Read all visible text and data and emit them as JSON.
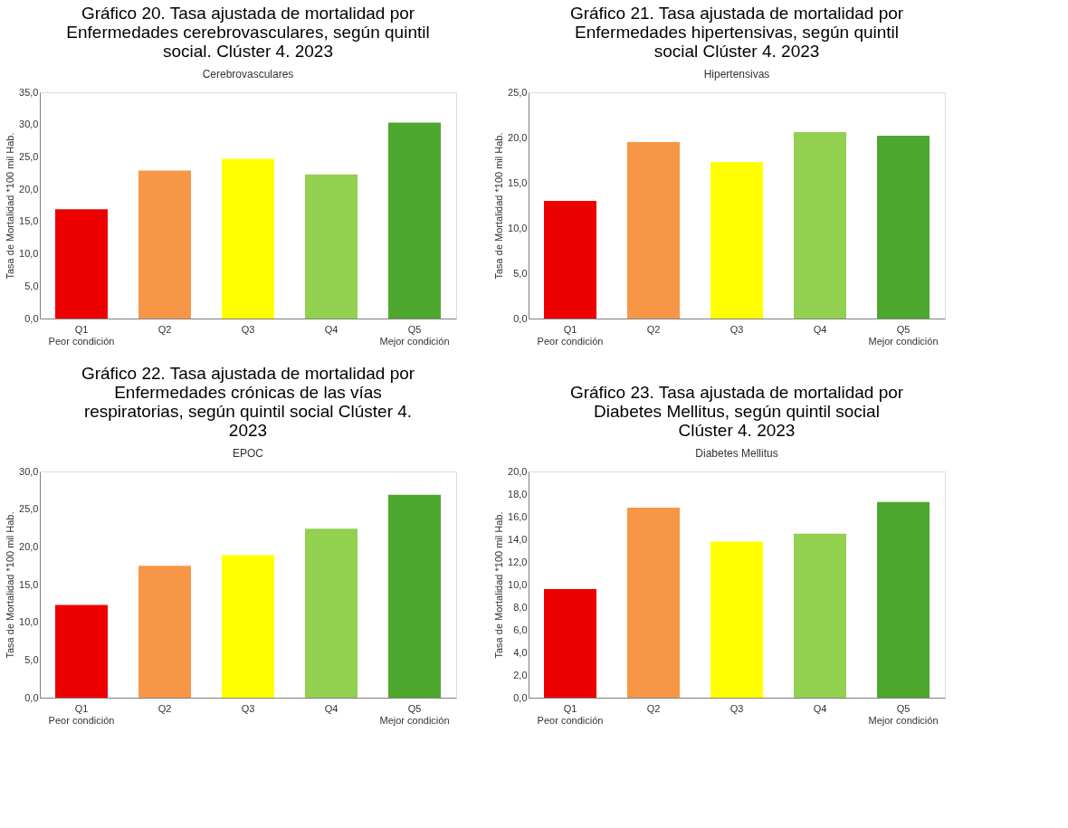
{
  "chart_data": [
    {
      "type": "bar",
      "title": "Gráfico 20. Tasa ajustada de mortalidad por Enfermedades cerebrovasculares, según quintil social. Clúster 4. 2023",
      "subtitle": "Cerebrovasculares",
      "ylabel": "Tasa de Mortalidad *100 mil Hab.",
      "categories": [
        "Q1\nPeor condición",
        "Q2",
        "Q3",
        "Q4",
        "Q5\nMejor condición"
      ],
      "values": [
        16.9,
        22.9,
        24.7,
        22.3,
        30.3
      ],
      "colors": [
        "#ee0000",
        "#f79646",
        "#ffff00",
        "#92d050",
        "#4ea72e"
      ],
      "ylim": [
        0,
        35
      ],
      "yticks": [
        {
          "value": 0,
          "label": "0,0"
        },
        {
          "value": 5,
          "label": "5,0"
        },
        {
          "value": 10,
          "label": "10,0"
        },
        {
          "value": 15,
          "label": "15,0"
        },
        {
          "value": 20,
          "label": "20,0"
        },
        {
          "value": 25,
          "label": "25,0"
        },
        {
          "value": 30,
          "label": "30,0"
        },
        {
          "value": 35,
          "label": "35,0"
        }
      ],
      "grid": false,
      "legend": false
    },
    {
      "type": "bar",
      "title": "Gráfico 21. Tasa ajustada de mortalidad por Enfermedades hipertensivas, según quintil social Clúster 4. 2023",
      "subtitle": "Hipertensivas",
      "ylabel": "Tasa de Mortalidad *100 mil Hab.",
      "categories": [
        "Q1\nPeor condición",
        "Q2",
        "Q3",
        "Q4",
        "Q5\nMejor condición"
      ],
      "values": [
        13.0,
        19.5,
        17.3,
        20.6,
        20.2
      ],
      "colors": [
        "#ee0000",
        "#f79646",
        "#ffff00",
        "#92d050",
        "#4ea72e"
      ],
      "ylim": [
        0,
        25
      ],
      "yticks": [
        {
          "value": 0,
          "label": "0,0"
        },
        {
          "value": 5,
          "label": "5,0"
        },
        {
          "value": 10,
          "label": "10,0"
        },
        {
          "value": 15,
          "label": "15,0"
        },
        {
          "value": 20,
          "label": "20,0"
        },
        {
          "value": 25,
          "label": "25,0"
        }
      ],
      "grid": false,
      "legend": false
    },
    {
      "type": "bar",
      "title": "Gráfico 22. Tasa ajustada de mortalidad por Enfermedades crónicas de las vías respiratorias, según quintil social Clúster 4. 2023",
      "subtitle": "EPOC",
      "ylabel": "Tasa de Mortalidad *100 mil Hab.",
      "categories": [
        "Q1\nPeor condición",
        "Q2",
        "Q3",
        "Q4",
        "Q5\nMejor condición"
      ],
      "values": [
        12.3,
        17.5,
        18.9,
        22.4,
        26.9
      ],
      "colors": [
        "#ee0000",
        "#f79646",
        "#ffff00",
        "#92d050",
        "#4ea72e"
      ],
      "ylim": [
        0,
        30
      ],
      "yticks": [
        {
          "value": 0,
          "label": "0,0"
        },
        {
          "value": 5,
          "label": "5,0"
        },
        {
          "value": 10,
          "label": "10,0"
        },
        {
          "value": 15,
          "label": "15,0"
        },
        {
          "value": 20,
          "label": "20,0"
        },
        {
          "value": 25,
          "label": "25,0"
        },
        {
          "value": 30,
          "label": "30,0"
        }
      ],
      "grid": false,
      "legend": false
    },
    {
      "type": "bar",
      "title": "Gráfico 23. Tasa ajustada de mortalidad por Diabetes Mellitus, según quintil social Clúster 4. 2023",
      "subtitle": "Diabetes Mellitus",
      "ylabel": "Tasa de Mortalidad *100 mil Hab.",
      "categories": [
        "Q1\nPeor condición",
        "Q2",
        "Q3",
        "Q4",
        "Q5\nMejor condición"
      ],
      "values": [
        9.6,
        16.8,
        13.8,
        14.5,
        17.3
      ],
      "colors": [
        "#ee0000",
        "#f79646",
        "#ffff00",
        "#92d050",
        "#4ea72e"
      ],
      "ylim": [
        0,
        20
      ],
      "yticks": [
        {
          "value": 0,
          "label": "0,0"
        },
        {
          "value": 2,
          "label": "2,0"
        },
        {
          "value": 4,
          "label": "4,0"
        },
        {
          "value": 6,
          "label": "6,0"
        },
        {
          "value": 8,
          "label": "8,0"
        },
        {
          "value": 10,
          "label": "10,0"
        },
        {
          "value": 12,
          "label": "12,0"
        },
        {
          "value": 14,
          "label": "14,0"
        },
        {
          "value": 16,
          "label": "16,0"
        },
        {
          "value": 18,
          "label": "18,0"
        },
        {
          "value": 20,
          "label": "20,0"
        }
      ],
      "grid": false,
      "legend": false
    }
  ]
}
